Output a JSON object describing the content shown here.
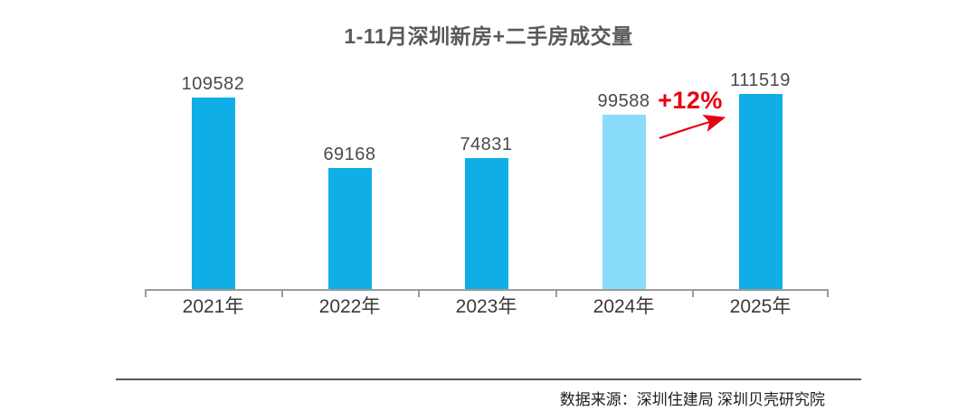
{
  "title": "1-11月深圳新房+二手房成交量",
  "chart_data": {
    "type": "bar",
    "title": "1-11月深圳新房+二手房成交量",
    "categories": [
      "2021年",
      "2022年",
      "2023年",
      "2024年",
      "2025年"
    ],
    "values": [
      109582,
      69168,
      74831,
      99588,
      111519
    ],
    "xlabel": "",
    "ylabel": "",
    "ylim": [
      0,
      120000
    ],
    "grid": false,
    "legend": false,
    "bar_colors": [
      "#0FAEE6",
      "#0FAEE6",
      "#0FAEE6",
      "#8ADDFA",
      "#0FAEE6"
    ],
    "highlight_index": 3,
    "annotations": [
      {
        "text": "+12%",
        "from_category": "2024年",
        "to_category": "2025年",
        "color": "#E60012"
      }
    ]
  },
  "annotation": {
    "growth_label": "+12%"
  },
  "footer": {
    "source": "数据来源：深圳住建局 深圳贝壳研究院"
  },
  "colors": {
    "bar_primary": "#0FAEE6",
    "bar_highlight": "#8ADDFA",
    "annotation_red": "#E60012",
    "axis_gray": "#9B9B9B",
    "title_gray": "#58595B"
  }
}
